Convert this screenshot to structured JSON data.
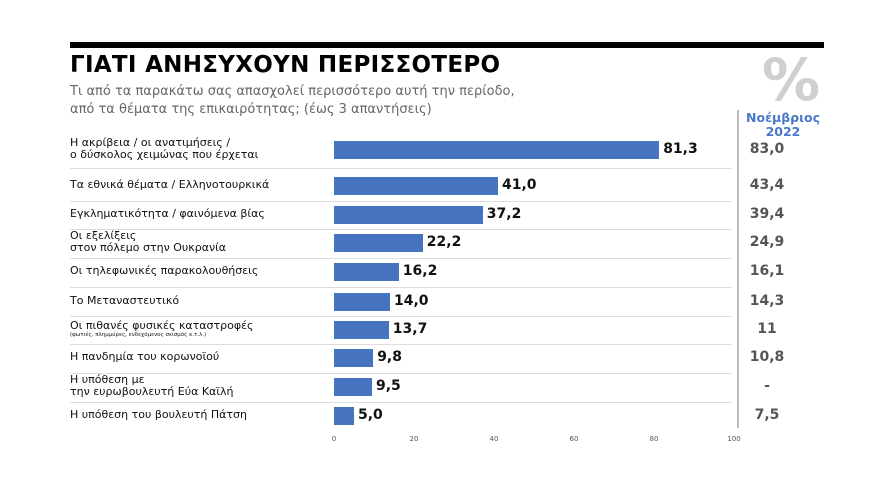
{
  "chart_data": {
    "type": "bar",
    "title": "ΓΙΑΤΙ ΑΝΗΣΥΧΟΥΝ ΠΕΡΙΣΣΟΤΕΡΟ",
    "subtitle_lines": [
      "Τι από τα παρακάτω σας απασχολεί περισσότερο αυτή την περίοδο,",
      "από τα θέματα της επικαιρότητας; (έως 3 απαντήσεις)"
    ],
    "unit_symbol": "%",
    "comparison_header": [
      "Νοέμβριος",
      "2022"
    ],
    "categories": [
      {
        "lines": [
          "Η ακρίβεια / οι ανατιμήσεις /",
          "ο δύσκολος χειμώνας που έρχεται"
        ]
      },
      {
        "lines": [
          "Τα εθνικά θέματα / Ελληνοτουρκικά"
        ]
      },
      {
        "lines": [
          "Εγκληματικότητα / φαινόμενα βίας"
        ]
      },
      {
        "lines": [
          "Οι εξελίξεις",
          "στον πόλεμο στην Ουκρανία"
        ]
      },
      {
        "lines": [
          "Οι τηλεφωνικές παρακολουθήσεις"
        ]
      },
      {
        "lines": [
          "Το Μεταναστευτικό"
        ]
      },
      {
        "lines": [
          "Οι πιθανές φυσικές καταστροφές"
        ],
        "note": "(φωτιές, πλημμύρες, ενδεχόμενος σεισμός κ.τ.λ.)"
      },
      {
        "lines": [
          "Η πανδημία του κορωνοϊού"
        ]
      },
      {
        "lines": [
          "Η υπόθεση με",
          "την ευρωβουλευτή Εύα Καϊλή"
        ]
      },
      {
        "lines": [
          "Η υπόθεση του βουλευτή Πάτση"
        ]
      }
    ],
    "values": [
      81.3,
      41.0,
      37.2,
      22.2,
      16.2,
      14.0,
      13.7,
      9.8,
      9.5,
      5.0
    ],
    "value_labels": [
      "81,3",
      "41,0",
      "37,2",
      "22,2",
      "16,2",
      "14,0",
      "13,7",
      "9,8",
      "9,5",
      "5,0"
    ],
    "previous_labels": [
      "83,0",
      "43,4",
      "39,4",
      "24,9",
      "16,1",
      "14,3",
      "11",
      "10,8",
      "-",
      "7,5"
    ],
    "xlim": [
      0,
      100
    ],
    "xticks": [
      0,
      20,
      40,
      60,
      80,
      100
    ],
    "bar_color": "#4674c1"
  }
}
